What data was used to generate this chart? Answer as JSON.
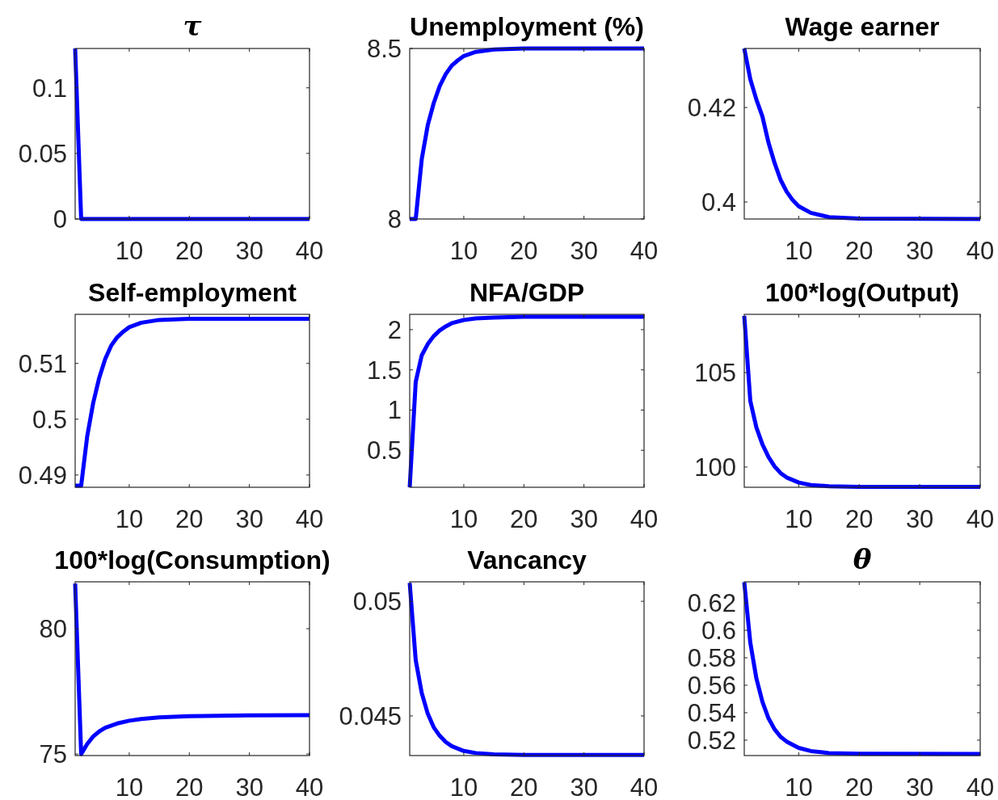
{
  "chart_data": [
    {
      "type": "line",
      "title": "τ",
      "xlim": [
        1,
        40
      ],
      "ylim": [
        0,
        0.13
      ],
      "xticks": [
        10,
        20,
        30,
        40
      ],
      "yticks": [
        0,
        0.05,
        0.1
      ],
      "series": [
        {
          "color": "#0000ff",
          "x": [
            1,
            2,
            40
          ],
          "values": [
            0.13,
            0,
            0
          ]
        }
      ]
    },
    {
      "type": "line",
      "title": "Unemployment (%)",
      "xlim": [
        1,
        40
      ],
      "ylim": [
        8,
        8.5
      ],
      "xticks": [
        10,
        20,
        30,
        40
      ],
      "yticks": [
        8,
        8.5
      ],
      "series": [
        {
          "color": "#0000ff",
          "x": [
            1,
            2,
            3,
            4,
            5,
            6,
            7,
            8,
            9,
            10,
            12,
            15,
            20,
            40
          ],
          "values": [
            8,
            8,
            8.175,
            8.275,
            8.34,
            8.39,
            8.425,
            8.45,
            8.465,
            8.478,
            8.49,
            8.497,
            8.5,
            8.5
          ]
        }
      ]
    },
    {
      "type": "line",
      "title": "Wage earner",
      "xlim": [
        1,
        40
      ],
      "ylim": [
        0.3964,
        0.4325
      ],
      "xticks": [
        10,
        20,
        30,
        40
      ],
      "yticks": [
        0.4,
        0.42
      ],
      "series": [
        {
          "color": "#0000ff",
          "x": [
            1,
            2,
            3,
            4,
            5,
            6,
            7,
            8,
            9,
            10,
            12,
            15,
            20,
            40
          ],
          "values": [
            0.4325,
            0.426,
            0.4217,
            0.4181,
            0.4126,
            0.4083,
            0.4047,
            0.4022,
            0.4004,
            0.3991,
            0.3977,
            0.3968,
            0.3965,
            0.3964
          ]
        }
      ]
    },
    {
      "type": "line",
      "title": "Self-employment",
      "xlim": [
        1,
        40
      ],
      "ylim": [
        0.4878,
        0.5188
      ],
      "xticks": [
        10,
        20,
        30,
        40
      ],
      "yticks": [
        0.49,
        0.5,
        0.51
      ],
      "series": [
        {
          "color": "#0000ff",
          "x": [
            1,
            2,
            3,
            4,
            5,
            6,
            7,
            8,
            9,
            10,
            12,
            15,
            20,
            40
          ],
          "values": [
            0.4881,
            0.4881,
            0.4969,
            0.5029,
            0.5074,
            0.5108,
            0.5132,
            0.5147,
            0.5157,
            0.5165,
            0.5173,
            0.5178,
            0.518,
            0.518
          ]
        }
      ]
    },
    {
      "type": "line",
      "title": "NFA/GDP",
      "xlim": [
        1,
        40
      ],
      "ylim": [
        0.04,
        2.19
      ],
      "xticks": [
        10,
        20,
        30,
        40
      ],
      "yticks": [
        0.5,
        1,
        1.5,
        2
      ],
      "series": [
        {
          "color": "#0000ff",
          "x": [
            1,
            2,
            3,
            4,
            5,
            6,
            7,
            8,
            10,
            12,
            15,
            20,
            40
          ],
          "values": [
            0.04,
            1.35,
            1.68,
            1.82,
            1.92,
            1.99,
            2.04,
            2.08,
            2.12,
            2.14,
            2.15,
            2.16,
            2.16
          ]
        }
      ]
    },
    {
      "type": "line",
      "title": "100*log(Output)",
      "xlim": [
        1,
        40
      ],
      "ylim": [
        98.93,
        108.08
      ],
      "xticks": [
        10,
        20,
        30,
        40
      ],
      "yticks": [
        100,
        105
      ],
      "series": [
        {
          "color": "#0000ff",
          "x": [
            1,
            2,
            3,
            4,
            5,
            6,
            7,
            8,
            10,
            12,
            15,
            20,
            40
          ],
          "values": [
            108,
            103.5,
            102.1,
            101.2,
            100.54,
            100.04,
            99.68,
            99.45,
            99.18,
            99.05,
            98.98,
            98.95,
            98.95
          ]
        }
      ]
    },
    {
      "type": "line",
      "title": "100*log(Consumption)",
      "xlim": [
        1,
        40
      ],
      "ylim": [
        74.94,
        81.87
      ],
      "xticks": [
        10,
        20,
        30,
        40
      ],
      "yticks": [
        75,
        80
      ],
      "series": [
        {
          "color": "#0000ff",
          "x": [
            1,
            2,
            3,
            4,
            5,
            6,
            8,
            10,
            12,
            15,
            20,
            30,
            40
          ],
          "values": [
            81.8,
            75,
            75.4,
            75.7,
            75.9,
            76.05,
            76.22,
            76.33,
            76.4,
            76.46,
            76.51,
            76.54,
            76.55
          ]
        }
      ]
    },
    {
      "type": "line",
      "title": "Vancancy",
      "xlim": [
        1,
        40
      ],
      "ylim": [
        0.04327,
        0.05085
      ],
      "xticks": [
        10,
        20,
        30,
        40
      ],
      "yticks": [
        0.045,
        0.05
      ],
      "series": [
        {
          "color": "#0000ff",
          "x": [
            1,
            2,
            3,
            4,
            5,
            6,
            7,
            8,
            10,
            12,
            15,
            20,
            40
          ],
          "values": [
            0.0508,
            0.04743,
            0.046,
            0.0451,
            0.0445,
            0.04413,
            0.04386,
            0.04368,
            0.04347,
            0.04338,
            0.04332,
            0.0433,
            0.0433
          ]
        }
      ]
    },
    {
      "type": "line",
      "title": "θ",
      "xlim": [
        1,
        40
      ],
      "ylim": [
        0.5088,
        0.6353
      ],
      "xticks": [
        10,
        20,
        30,
        40
      ],
      "yticks": [
        0.52,
        0.54,
        0.56,
        0.58,
        0.6,
        0.62
      ],
      "series": [
        {
          "color": "#0000ff",
          "x": [
            1,
            2,
            3,
            4,
            5,
            6,
            7,
            8,
            10,
            12,
            15,
            20,
            40
          ],
          "values": [
            0.635,
            0.591,
            0.565,
            0.548,
            0.536,
            0.528,
            0.5225,
            0.519,
            0.5144,
            0.5121,
            0.5106,
            0.5101,
            0.51
          ]
        }
      ]
    }
  ]
}
